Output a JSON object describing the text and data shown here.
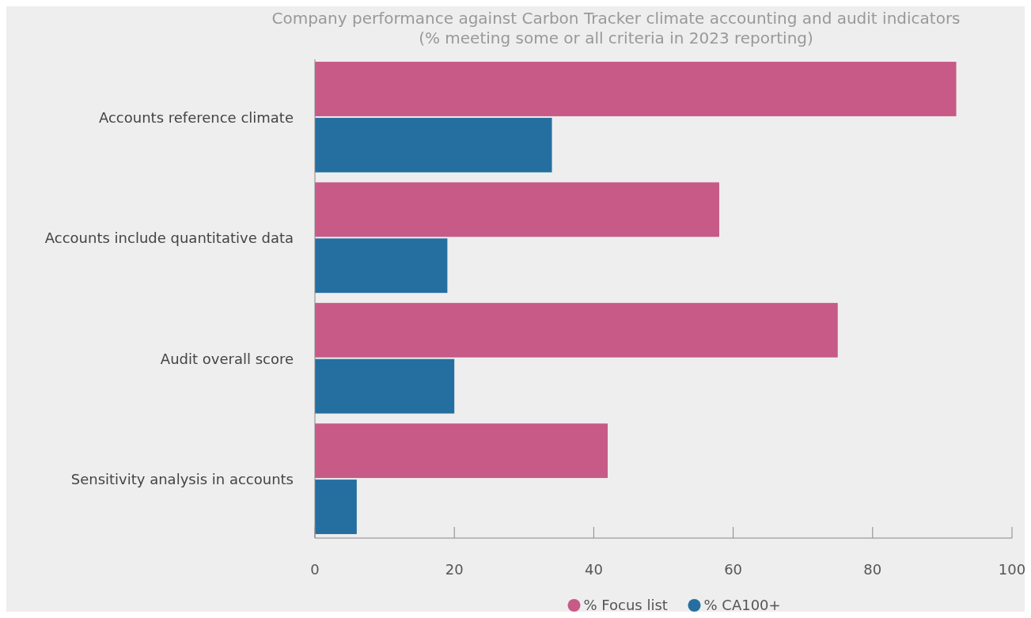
{
  "chart_data": {
    "type": "bar",
    "orientation": "horizontal",
    "title": "Company performance against Carbon Tracker climate accounting and audit indicators (% meeting some or all criteria in 2023 reporting)",
    "categories": [
      "Accounts reference climate",
      "Accounts include quantitative data",
      "Audit overall score",
      "Sensitivity analysis in accounts"
    ],
    "series": [
      {
        "name": "% Focus list",
        "color": "#c75a87",
        "values": [
          92,
          58,
          75,
          42
        ]
      },
      {
        "name": "% CA100+",
        "color": "#246f9f",
        "values": [
          34,
          19,
          20,
          6
        ]
      }
    ],
    "xlim": [
      0,
      100
    ],
    "xticks": [
      0,
      20,
      40,
      60,
      80,
      100
    ],
    "legend": "bottom",
    "grid": false
  }
}
